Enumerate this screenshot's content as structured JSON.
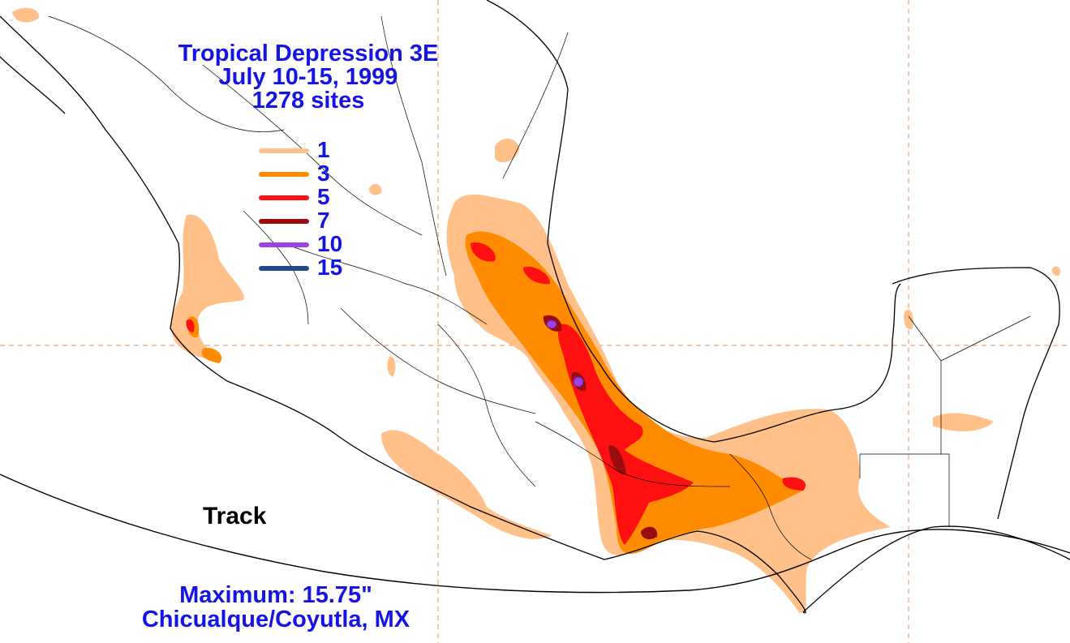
{
  "title": {
    "line1": "Tropical Depression 3E",
    "line2": "July 10-15, 1999",
    "line3": "1278 sites"
  },
  "legend": [
    {
      "label": "1",
      "color": "#ffc08a"
    },
    {
      "label": "3",
      "color": "#ff8c00"
    },
    {
      "label": "5",
      "color": "#ff1010"
    },
    {
      "label": "7",
      "color": "#9b0d0d"
    },
    {
      "label": "10",
      "color": "#9b41e6"
    },
    {
      "label": "15",
      "color": "#1e4b8c"
    }
  ],
  "track_label": "Track",
  "maximum": {
    "line1": "Maximum:  15.75\"",
    "line2": "Chicualque/Coyutla, MX"
  },
  "colors": {
    "text_blue": "#1414e6",
    "gridline": "#f0a070",
    "coastline": "#000000",
    "background": "#ffffff"
  }
}
